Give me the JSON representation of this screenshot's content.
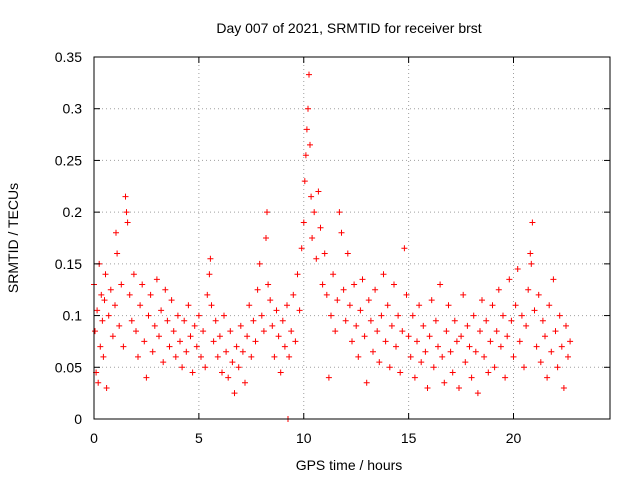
{
  "chart_data": {
    "type": "scatter",
    "title": "Day 007 of 2021, SRMTID for receiver brst",
    "xlabel": "GPS time / hours",
    "ylabel": "SRMTID / TECUs",
    "xlim": [
      0,
      24.6
    ],
    "ylim": [
      0,
      0.35
    ],
    "xticks": [
      0,
      5,
      10,
      15,
      20
    ],
    "xtick_labels": [
      "0",
      "5",
      "10",
      "15",
      "20"
    ],
    "yticks": [
      0,
      0.05,
      0.1,
      0.15,
      0.2,
      0.25,
      0.3,
      0.35
    ],
    "ytick_labels": [
      "0",
      "0.05",
      "0.1",
      "0.15",
      "0.2",
      "0.25",
      "0.3",
      "0.35"
    ],
    "grid": true,
    "marker": "plus",
    "color": "#ff0000",
    "series": [
      {
        "name": "brst",
        "points": [
          [
            0.0,
            0.13
          ],
          [
            0.05,
            0.085
          ],
          [
            0.1,
            0.045
          ],
          [
            0.15,
            0.105
          ],
          [
            0.2,
            0.035
          ],
          [
            0.25,
            0.15
          ],
          [
            0.3,
            0.07
          ],
          [
            0.35,
            0.12
          ],
          [
            0.4,
            0.095
          ],
          [
            0.45,
            0.06
          ],
          [
            0.5,
            0.115
          ],
          [
            0.55,
            0.14
          ],
          [
            0.6,
            0.03
          ],
          [
            0.7,
            0.1
          ],
          [
            0.8,
            0.125
          ],
          [
            0.9,
            0.08
          ],
          [
            1.0,
            0.11
          ],
          [
            1.05,
            0.18
          ],
          [
            1.1,
            0.16
          ],
          [
            1.2,
            0.09
          ],
          [
            1.3,
            0.13
          ],
          [
            1.4,
            0.07
          ],
          [
            1.5,
            0.215
          ],
          [
            1.55,
            0.2
          ],
          [
            1.6,
            0.19
          ],
          [
            1.7,
            0.12
          ],
          [
            1.8,
            0.095
          ],
          [
            1.9,
            0.14
          ],
          [
            2.0,
            0.085
          ],
          [
            2.1,
            0.06
          ],
          [
            2.2,
            0.11
          ],
          [
            2.3,
            0.13
          ],
          [
            2.4,
            0.075
          ],
          [
            2.5,
            0.04
          ],
          [
            2.6,
            0.1
          ],
          [
            2.7,
            0.12
          ],
          [
            2.8,
            0.065
          ],
          [
            2.9,
            0.09
          ],
          [
            3.0,
            0.135
          ],
          [
            3.1,
            0.08
          ],
          [
            3.2,
            0.105
          ],
          [
            3.3,
            0.055
          ],
          [
            3.4,
            0.125
          ],
          [
            3.5,
            0.095
          ],
          [
            3.6,
            0.07
          ],
          [
            3.7,
            0.115
          ],
          [
            3.8,
            0.085
          ],
          [
            3.9,
            0.06
          ],
          [
            4.0,
            0.1
          ],
          [
            4.1,
            0.075
          ],
          [
            4.2,
            0.05
          ],
          [
            4.3,
            0.095
          ],
          [
            4.4,
            0.065
          ],
          [
            4.5,
            0.11
          ],
          [
            4.6,
            0.08
          ],
          [
            4.7,
            0.045
          ],
          [
            4.8,
            0.09
          ],
          [
            4.9,
            0.07
          ],
          [
            5.0,
            0.1
          ],
          [
            5.1,
            0.06
          ],
          [
            5.2,
            0.085
          ],
          [
            5.3,
            0.05
          ],
          [
            5.4,
            0.12
          ],
          [
            5.5,
            0.14
          ],
          [
            5.55,
            0.155
          ],
          [
            5.6,
            0.11
          ],
          [
            5.7,
            0.075
          ],
          [
            5.8,
            0.095
          ],
          [
            5.9,
            0.06
          ],
          [
            6.0,
            0.08
          ],
          [
            6.1,
            0.045
          ],
          [
            6.2,
            0.1
          ],
          [
            6.3,
            0.065
          ],
          [
            6.4,
            0.04
          ],
          [
            6.5,
            0.085
          ],
          [
            6.6,
            0.055
          ],
          [
            6.7,
            0.025
          ],
          [
            6.8,
            0.07
          ],
          [
            6.9,
            0.05
          ],
          [
            7.0,
            0.09
          ],
          [
            7.1,
            0.065
          ],
          [
            7.2,
            0.035
          ],
          [
            7.3,
            0.08
          ],
          [
            7.4,
            0.11
          ],
          [
            7.5,
            0.06
          ],
          [
            7.6,
            0.095
          ],
          [
            7.7,
            0.075
          ],
          [
            7.8,
            0.125
          ],
          [
            7.9,
            0.15
          ],
          [
            8.0,
            0.1
          ],
          [
            8.1,
            0.085
          ],
          [
            8.2,
            0.175
          ],
          [
            8.25,
            0.2
          ],
          [
            8.3,
            0.13
          ],
          [
            8.4,
            0.115
          ],
          [
            8.5,
            0.09
          ],
          [
            8.6,
            0.06
          ],
          [
            8.7,
            0.105
          ],
          [
            8.8,
            0.08
          ],
          [
            8.9,
            0.045
          ],
          [
            9.0,
            0.095
          ],
          [
            9.1,
            0.07
          ],
          [
            9.2,
            0.11
          ],
          [
            9.3,
            0.06
          ],
          [
            9.4,
            0.085
          ],
          [
            9.5,
            0.12
          ],
          [
            9.6,
            0.075
          ],
          [
            9.7,
            0.14
          ],
          [
            9.8,
            0.105
          ],
          [
            9.9,
            0.165
          ],
          [
            10.0,
            0.19
          ],
          [
            10.05,
            0.23
          ],
          [
            10.1,
            0.255
          ],
          [
            10.15,
            0.28
          ],
          [
            10.2,
            0.3
          ],
          [
            10.25,
            0.333
          ],
          [
            10.3,
            0.265
          ],
          [
            10.35,
            0.215
          ],
          [
            10.4,
            0.175
          ],
          [
            10.5,
            0.2
          ],
          [
            10.6,
            0.155
          ],
          [
            10.7,
            0.22
          ],
          [
            10.8,
            0.185
          ],
          [
            10.9,
            0.13
          ],
          [
            11.0,
            0.16
          ],
          [
            11.1,
            0.12
          ],
          [
            11.2,
            0.04
          ],
          [
            11.3,
            0.1
          ],
          [
            11.4,
            0.14
          ],
          [
            11.5,
            0.085
          ],
          [
            11.6,
            0.115
          ],
          [
            11.7,
            0.2
          ],
          [
            11.8,
            0.18
          ],
          [
            11.9,
            0.125
          ],
          [
            12.0,
            0.095
          ],
          [
            12.1,
            0.16
          ],
          [
            12.2,
            0.11
          ],
          [
            12.3,
            0.075
          ],
          [
            12.4,
            0.13
          ],
          [
            12.5,
            0.09
          ],
          [
            12.6,
            0.06
          ],
          [
            12.7,
            0.105
          ],
          [
            12.8,
            0.135
          ],
          [
            12.9,
            0.08
          ],
          [
            13.0,
            0.035
          ],
          [
            13.1,
            0.115
          ],
          [
            13.2,
            0.095
          ],
          [
            13.3,
            0.065
          ],
          [
            13.4,
            0.125
          ],
          [
            13.5,
            0.085
          ],
          [
            13.6,
            0.055
          ],
          [
            13.7,
            0.1
          ],
          [
            13.8,
            0.14
          ],
          [
            13.9,
            0.075
          ],
          [
            14.0,
            0.11
          ],
          [
            14.1,
            0.05
          ],
          [
            14.2,
            0.09
          ],
          [
            14.3,
            0.13
          ],
          [
            14.4,
            0.07
          ],
          [
            14.5,
            0.1
          ],
          [
            14.6,
            0.045
          ],
          [
            14.7,
            0.085
          ],
          [
            14.8,
            0.165
          ],
          [
            14.9,
            0.12
          ],
          [
            15.0,
            0.08
          ],
          [
            15.1,
            0.06
          ],
          [
            15.2,
            0.1
          ],
          [
            15.3,
            0.04
          ],
          [
            15.4,
            0.075
          ],
          [
            15.5,
            0.11
          ],
          [
            15.6,
            0.055
          ],
          [
            15.7,
            0.09
          ],
          [
            15.8,
            0.065
          ],
          [
            15.9,
            0.03
          ],
          [
            16.0,
            0.08
          ],
          [
            16.1,
            0.115
          ],
          [
            16.2,
            0.05
          ],
          [
            16.3,
            0.095
          ],
          [
            16.4,
            0.07
          ],
          [
            16.5,
            0.13
          ],
          [
            16.6,
            0.06
          ],
          [
            16.7,
            0.035
          ],
          [
            16.8,
            0.085
          ],
          [
            16.9,
            0.11
          ],
          [
            17.0,
            0.065
          ],
          [
            17.1,
            0.045
          ],
          [
            17.2,
            0.095
          ],
          [
            17.3,
            0.075
          ],
          [
            17.4,
            0.03
          ],
          [
            17.5,
            0.08
          ],
          [
            17.6,
            0.12
          ],
          [
            17.7,
            0.055
          ],
          [
            17.8,
            0.09
          ],
          [
            17.9,
            0.07
          ],
          [
            18.0,
            0.04
          ],
          [
            18.1,
            0.1
          ],
          [
            18.2,
            0.065
          ],
          [
            18.3,
            0.025
          ],
          [
            18.4,
            0.085
          ],
          [
            18.5,
            0.115
          ],
          [
            18.6,
            0.06
          ],
          [
            18.7,
            0.095
          ],
          [
            18.8,
            0.045
          ],
          [
            18.9,
            0.075
          ],
          [
            19.0,
            0.11
          ],
          [
            19.1,
            0.05
          ],
          [
            19.2,
            0.085
          ],
          [
            19.3,
            0.125
          ],
          [
            19.4,
            0.07
          ],
          [
            19.5,
            0.1
          ],
          [
            19.6,
            0.04
          ],
          [
            19.7,
            0.08
          ],
          [
            19.8,
            0.135
          ],
          [
            19.9,
            0.095
          ],
          [
            20.0,
            0.06
          ],
          [
            20.1,
            0.11
          ],
          [
            20.2,
            0.145
          ],
          [
            20.3,
            0.075
          ],
          [
            20.4,
            0.1
          ],
          [
            20.5,
            0.05
          ],
          [
            20.6,
            0.09
          ],
          [
            20.7,
            0.125
          ],
          [
            20.8,
            0.16
          ],
          [
            20.85,
            0.15
          ],
          [
            20.9,
            0.19
          ],
          [
            21.0,
            0.105
          ],
          [
            21.1,
            0.07
          ],
          [
            21.2,
            0.12
          ],
          [
            21.3,
            0.055
          ],
          [
            21.4,
            0.095
          ],
          [
            21.5,
            0.08
          ],
          [
            21.6,
            0.04
          ],
          [
            21.7,
            0.11
          ],
          [
            21.8,
            0.065
          ],
          [
            21.9,
            0.135
          ],
          [
            22.0,
            0.085
          ],
          [
            22.1,
            0.05
          ],
          [
            22.2,
            0.1
          ],
          [
            22.3,
            0.07
          ],
          [
            22.4,
            0.03
          ],
          [
            22.5,
            0.09
          ],
          [
            22.6,
            0.06
          ],
          [
            22.7,
            0.075
          ],
          [
            9.25,
            0.0
          ]
        ]
      }
    ]
  }
}
